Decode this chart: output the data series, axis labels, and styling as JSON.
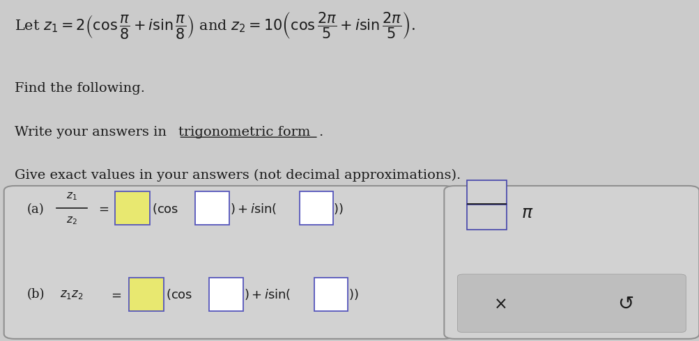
{
  "bg_color": "#cbcbcb",
  "main_box_color": "#d2d2d2",
  "side_box_color": "#d2d2d2",
  "side_bottom_color": "#bebebe",
  "input_box_yellow": "#e8e870",
  "input_box_white": "#ffffff",
  "input_border": "#5555bb",
  "text_color": "#1a1a1a",
  "line1": "Let $z_1=2\\left(\\cos\\dfrac{\\pi}{8}+i\\sin\\dfrac{\\pi}{8}\\right)$ and $z_2=10\\left(\\cos\\dfrac{2\\pi}{5}+i\\sin\\dfrac{2\\pi}{5}\\right)$.",
  "line2": "Find the following.",
  "line3_pre": "Write your answers in ",
  "line3_link": "trigonometric form",
  "line3_post": ".",
  "line4": "Give exact values in your answers (not decimal approximations).",
  "part_a_label": "(a)",
  "part_b_label": "(b)",
  "fontsize_main": 14,
  "fontsize_math": 15
}
